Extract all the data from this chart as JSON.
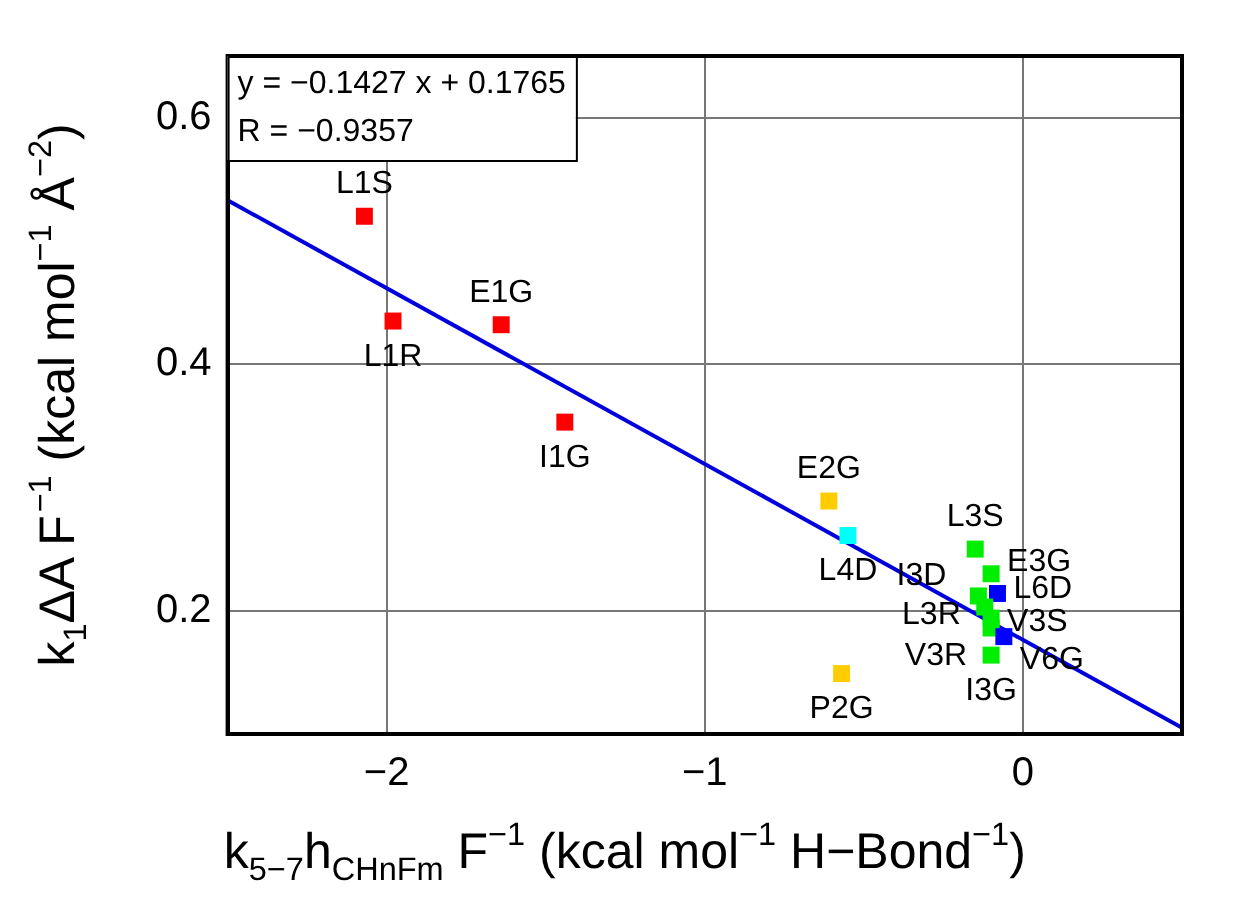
{
  "chart_data": {
    "type": "scatter",
    "xlabel": "k$_{5−7}$h$_{CHnFm}$ F$^{−1}$ (kcal mol$^{−1}$ H−Bond$^{−1}$)",
    "ylabel": "k$_{1}$ΔA F$^{−1}$ (kcal mol$^{−1}$ Å$^{−2}$)",
    "xlim": [
      -2.5,
      0.5
    ],
    "xticks": [
      -2,
      -1,
      0
    ],
    "ylim": [
      0.1,
      0.65
    ],
    "yticks": [
      0.2,
      0.4,
      0.6
    ],
    "grid": true,
    "series": [
      {
        "marker": "square",
        "x": [
          -2.07,
          -1.98,
          -1.64,
          -1.44,
          -0.61,
          -0.55,
          -0.57,
          -0.15,
          -0.1,
          -0.08,
          -0.14,
          -0.12,
          -0.1,
          -0.1,
          -0.06,
          -0.1
        ],
        "values": [
          0.52,
          0.435,
          0.432,
          0.353,
          0.289,
          0.261,
          0.149,
          0.25,
          0.23,
          0.214,
          0.212,
          0.203,
          0.194,
          0.186,
          0.179,
          0.164
        ],
        "colors": [
          "#ff0000",
          "#ff0000",
          "#ff0000",
          "#ff0000",
          "#ffcc00",
          "#00ffff",
          "#ffcc00",
          "#00ee00",
          "#00ee00",
          "#0000ff",
          "#00ee00",
          "#00ee00",
          "#00ee00",
          "#00ee00",
          "#0000ff",
          "#00ee00"
        ]
      },
      {
        "type": "line",
        "marker": "none",
        "color": "#0000dd",
        "x": [
          -2.5,
          0.5
        ],
        "values": [
          0.533,
          0.105
        ]
      }
    ],
    "annotations": [
      "y = −0.1427 x + 0.1765",
      "R = −0.9357",
      {
        "text": "L1S",
        "x": -2.07,
        "y": 0.52
      },
      {
        "text": "L1R",
        "x": -1.98,
        "y": 0.435
      },
      {
        "text": "E1G",
        "x": -1.64,
        "y": 0.432
      },
      {
        "text": "I1G",
        "x": -1.44,
        "y": 0.353
      },
      {
        "text": "E2G",
        "x": -0.61,
        "y": 0.289
      },
      {
        "text": "L4D",
        "x": -0.55,
        "y": 0.261
      },
      {
        "text": "P2G",
        "x": -0.57,
        "y": 0.149
      },
      {
        "text": "L3S",
        "x": -0.15,
        "y": 0.25
      },
      {
        "text": "E3G",
        "x": -0.1,
        "y": 0.23
      },
      {
        "text": "L6D",
        "x": -0.08,
        "y": 0.214
      },
      {
        "text": "I3D",
        "x": -0.14,
        "y": 0.212
      },
      {
        "text": "L3R",
        "x": -0.12,
        "y": 0.203
      },
      {
        "text": "V3S",
        "x": -0.1,
        "y": 0.194
      },
      {
        "text": "V3R",
        "x": -0.1,
        "y": 0.186
      },
      {
        "text": "V6G",
        "x": -0.06,
        "y": 0.179
      },
      {
        "text": "I3G",
        "x": -0.1,
        "y": 0.164
      }
    ]
  }
}
